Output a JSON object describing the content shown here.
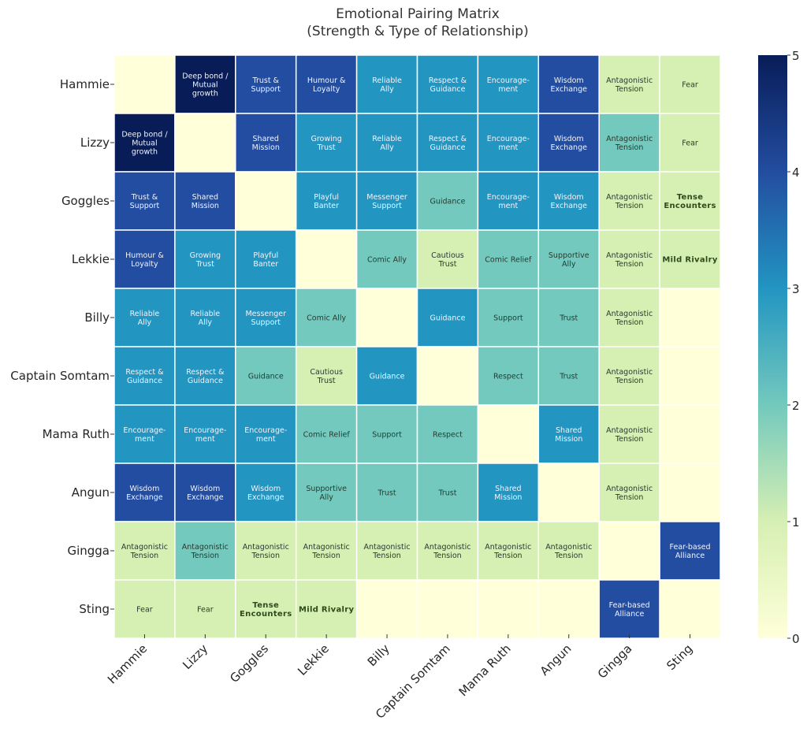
{
  "chart_data": {
    "type": "heatmap",
    "title": "Emotional Pairing Matrix",
    "subtitle": "(Strength & Type of Relationship)",
    "xlabel": "",
    "ylabel": "",
    "x_categories": [
      "Hammie",
      "Lizzy",
      "Goggles",
      "Lekkie",
      "Billy",
      "Captain Somtam",
      "Mama Ruth",
      "Angun",
      "Gingga",
      "Sting"
    ],
    "y_categories": [
      "Hammie",
      "Lizzy",
      "Goggles",
      "Lekkie",
      "Billy",
      "Captain Somtam",
      "Mama Ruth",
      "Angun",
      "Gingga",
      "Sting"
    ],
    "values": [
      [
        0,
        5,
        4,
        4,
        3,
        3,
        3,
        4,
        1,
        1
      ],
      [
        5,
        0,
        4,
        3,
        3,
        3,
        3,
        4,
        2,
        1
      ],
      [
        4,
        4,
        0,
        3,
        3,
        2,
        3,
        3,
        1,
        1
      ],
      [
        4,
        3,
        3,
        0,
        2,
        1,
        2,
        2,
        1,
        1
      ],
      [
        3,
        3,
        3,
        2,
        0,
        3,
        2,
        2,
        1,
        0
      ],
      [
        3,
        3,
        2,
        1,
        3,
        0,
        2,
        2,
        1,
        0
      ],
      [
        3,
        3,
        3,
        2,
        2,
        2,
        0,
        3,
        1,
        0
      ],
      [
        4,
        4,
        3,
        2,
        2,
        2,
        3,
        0,
        1,
        0
      ],
      [
        1,
        2,
        1,
        1,
        1,
        1,
        1,
        1,
        0,
        4
      ],
      [
        1,
        1,
        1,
        1,
        0,
        0,
        0,
        0,
        4,
        0
      ]
    ],
    "annotations": [
      [
        "",
        "Deep bond /\nMutual\ngrowth",
        "Trust &\nSupport",
        "Humour &\nLoyalty",
        "Reliable\nAlly",
        "Respect &\nGuidance",
        "Encourage-\nment",
        "Wisdom\nExchange",
        "Antagonistic\nTension",
        "Fear"
      ],
      [
        "Deep bond /\nMutual\ngrowth",
        "",
        "Shared\nMission",
        "Growing\nTrust",
        "Reliable\nAlly",
        "Respect &\nGuidance",
        "Encourage-\nment",
        "Wisdom\nExchange",
        "Antagonistic\nTension",
        "Fear"
      ],
      [
        "Trust &\nSupport",
        "Shared\nMission",
        "",
        "Playful\nBanter",
        "Messenger\nSupport",
        "Guidance",
        "Encourage-\nment",
        "Wisdom\nExchange",
        "Antagonistic\nTension",
        "Tense\nEncounters"
      ],
      [
        "Humour &\nLoyalty",
        "Growing\nTrust",
        "Playful\nBanter",
        "",
        "Comic Ally",
        "Cautious\nTrust",
        "Comic Relief",
        "Supportive\nAlly",
        "Antagonistic\nTension",
        "Mild Rivalry"
      ],
      [
        "Reliable\nAlly",
        "Reliable\nAlly",
        "Messenger\nSupport",
        "Comic Ally",
        "",
        "Guidance",
        "Support",
        "Trust",
        "Antagonistic\nTension",
        ""
      ],
      [
        "Respect &\nGuidance",
        "Respect &\nGuidance",
        "Guidance",
        "Cautious\nTrust",
        "Guidance",
        "",
        "Respect",
        "Trust",
        "Antagonistic\nTension",
        ""
      ],
      [
        "Encourage-\nment",
        "Encourage-\nment",
        "Encourage-\nment",
        "Comic Relief",
        "Support",
        "Respect",
        "",
        "Shared\nMission",
        "Antagonistic\nTension",
        ""
      ],
      [
        "Wisdom\nExchange",
        "Wisdom\nExchange",
        "Wisdom\nExchange",
        "Supportive\nAlly",
        "Trust",
        "Trust",
        "Shared\nMission",
        "",
        "Antagonistic\nTension",
        ""
      ],
      [
        "Antagonistic\nTension",
        "Antagonistic\nTension",
        "Antagonistic\nTension",
        "Antagonistic\nTension",
        "Antagonistic\nTension",
        "Antagonistic\nTension",
        "Antagonistic\nTension",
        "Antagonistic\nTension",
        "",
        "Fear-based\nAlliance"
      ],
      [
        "Fear",
        "Fear",
        "Tense\nEncounters",
        "Mild Rivalry",
        "",
        "",
        "",
        "",
        "Fear-based\nAlliance",
        ""
      ]
    ],
    "bold_annotations": [
      "Tense\nEncounters",
      "Mild Rivalry"
    ],
    "colormap": "YlGnBu",
    "color_stops": [
      "#ffffd9",
      "#d6efb3",
      "#73c9bd",
      "#2295c1",
      "#234da0",
      "#081d58"
    ],
    "colorbar": {
      "range": [
        0,
        5
      ],
      "ticks": [
        "0",
        "1",
        "2",
        "3",
        "4",
        "5"
      ],
      "placement": "right"
    },
    "grid": false,
    "legend": "none"
  }
}
